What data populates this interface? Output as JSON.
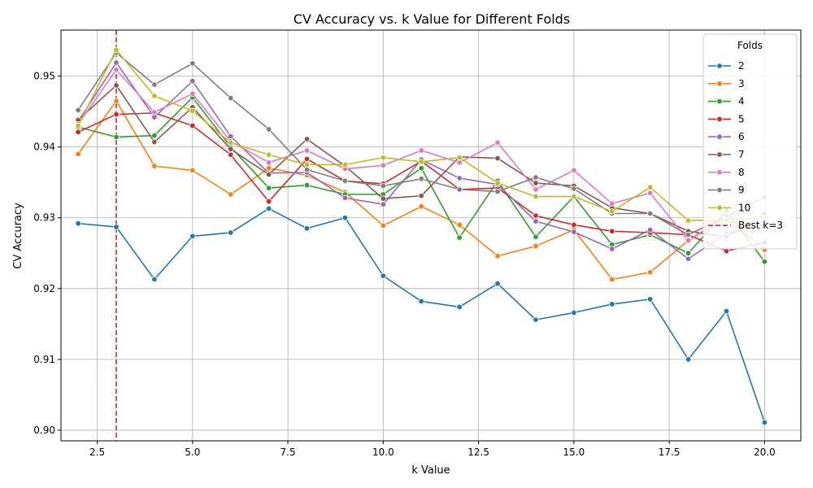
{
  "chart_data": {
    "type": "line",
    "title": "CV Accuracy vs. k Value for Different Folds",
    "xlabel": "k Value",
    "ylabel": "CV Accuracy",
    "xlim": [
      1.55,
      20.95
    ],
    "ylim": [
      0.8985,
      0.9565
    ],
    "xticks": [
      "2.5",
      "5.0",
      "7.5",
      "10.0",
      "12.5",
      "15.0",
      "17.5",
      "20.0"
    ],
    "xtick_values": [
      2.5,
      5.0,
      7.5,
      10.0,
      12.5,
      15.0,
      17.5,
      20.0
    ],
    "yticks": [
      "0.90",
      "0.91",
      "0.92",
      "0.93",
      "0.94",
      "0.95"
    ],
    "ytick_values": [
      0.9,
      0.91,
      0.92,
      0.93,
      0.94,
      0.95
    ],
    "grid": true,
    "legend_title": "Folds",
    "legend_position": "top-right",
    "x": [
      2,
      3,
      4,
      5,
      6,
      7,
      8,
      9,
      10,
      11,
      12,
      13,
      14,
      15,
      16,
      17,
      18,
      19,
      20
    ],
    "series": [
      {
        "name": "2",
        "color": "#1f77b4",
        "values": [
          0.9292,
          0.9287,
          0.9213,
          0.9274,
          0.9279,
          0.9313,
          0.9285,
          0.93,
          0.9218,
          0.9182,
          0.9174,
          0.9207,
          0.9156,
          0.9166,
          0.9178,
          0.9185,
          0.91,
          0.9168,
          0.9011
        ]
      },
      {
        "name": "3",
        "color": "#ff7f0e",
        "values": [
          0.939,
          0.9465,
          0.9373,
          0.9367,
          0.9333,
          0.937,
          0.936,
          0.9336,
          0.9289,
          0.9316,
          0.929,
          0.9246,
          0.926,
          0.9283,
          0.9213,
          0.9223,
          0.9268,
          0.93,
          0.9255
        ]
      },
      {
        "name": "4",
        "color": "#2ca02c",
        "values": [
          0.9428,
          0.9414,
          0.9416,
          0.947,
          0.94,
          0.9342,
          0.9346,
          0.9333,
          0.9333,
          0.937,
          0.9272,
          0.9352,
          0.9273,
          0.933,
          0.9262,
          0.9276,
          0.925,
          0.931,
          0.9238
        ]
      },
      {
        "name": "5",
        "color": "#d62728",
        "values": [
          0.9421,
          0.9446,
          0.9448,
          0.943,
          0.9389,
          0.9323,
          0.9383,
          0.9352,
          0.9348,
          0.938,
          0.934,
          0.9342,
          0.9303,
          0.929,
          0.9281,
          0.9279,
          0.9276,
          0.9253,
          0.9265
        ]
      },
      {
        "name": "6",
        "color": "#9467bd",
        "values": [
          0.9436,
          0.9519,
          0.9442,
          0.9493,
          0.9415,
          0.9363,
          0.9364,
          0.9328,
          0.9319,
          0.9382,
          0.9356,
          0.9347,
          0.9295,
          0.928,
          0.9256,
          0.9283,
          0.9242,
          0.9278,
          0.929
        ]
      },
      {
        "name": "7",
        "color": "#8c564b",
        "values": [
          0.9438,
          0.9487,
          0.9407,
          0.9456,
          0.9397,
          0.9361,
          0.9411,
          0.9373,
          0.9327,
          0.9331,
          0.9386,
          0.9384,
          0.9349,
          0.9345,
          0.9314,
          0.9306,
          0.9281,
          0.9273,
          0.9305
        ]
      },
      {
        "name": "8",
        "color": "#e377c2",
        "values": [
          0.9432,
          0.9509,
          0.9449,
          0.9475,
          0.9408,
          0.9378,
          0.9395,
          0.9369,
          0.9374,
          0.9395,
          0.9378,
          0.9406,
          0.934,
          0.9367,
          0.932,
          0.9335,
          0.9268,
          0.9302,
          0.929
        ]
      },
      {
        "name": "9",
        "color": "#7f7f7f",
        "values": [
          0.9452,
          0.9533,
          0.9488,
          0.9518,
          0.9469,
          0.9425,
          0.9368,
          0.9352,
          0.9345,
          0.9355,
          0.934,
          0.9337,
          0.9357,
          0.9341,
          0.9306,
          0.9306,
          0.9276,
          0.9302,
          0.9329
        ]
      },
      {
        "name": "10",
        "color": "#bcbd22",
        "values": [
          0.943,
          0.9537,
          0.9472,
          0.9451,
          0.9406,
          0.9389,
          0.9375,
          0.9375,
          0.9385,
          0.9379,
          0.9385,
          0.9349,
          0.933,
          0.933,
          0.9309,
          0.9343,
          0.9296,
          0.9297,
          0.93
        ]
      }
    ],
    "vline": {
      "label": "Best k=3",
      "x": 3,
      "color": "#d62728"
    }
  }
}
